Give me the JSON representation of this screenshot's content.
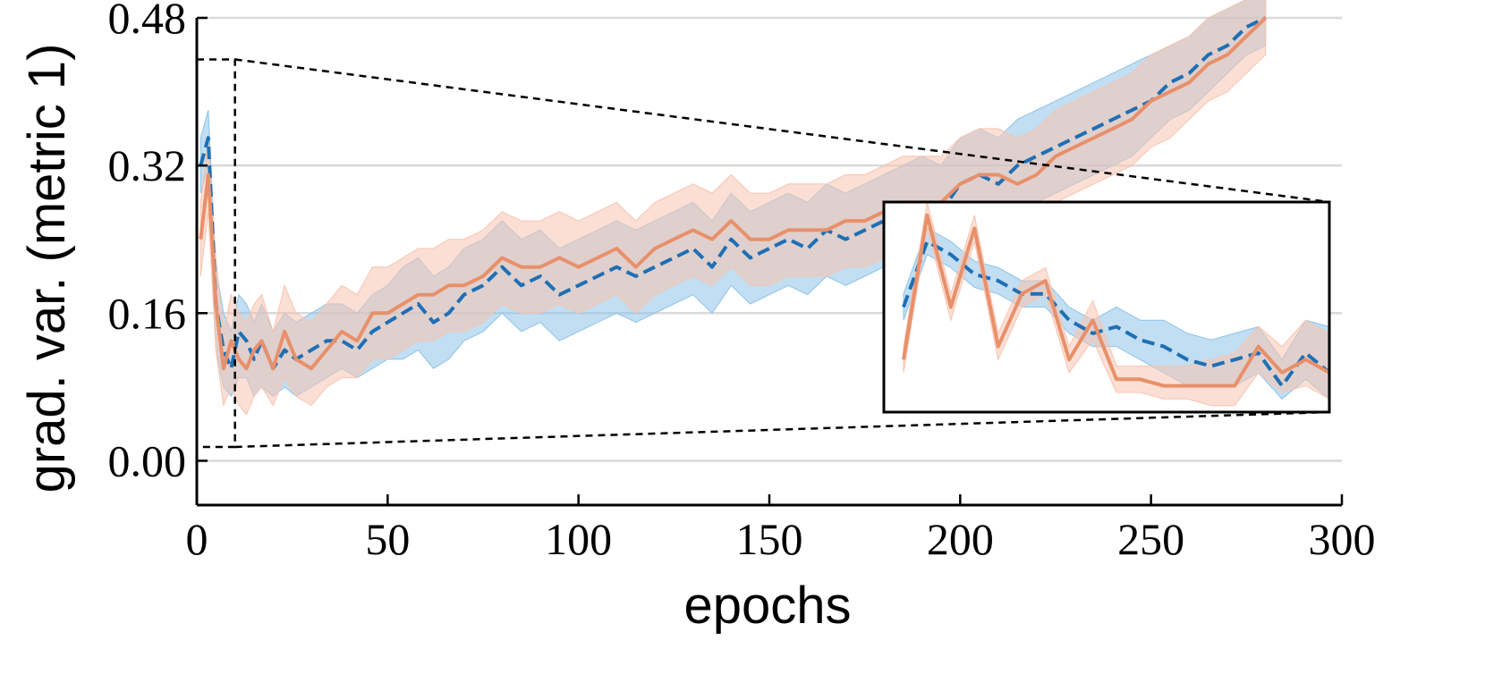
{
  "colors": {
    "blue_line": "#1f6fb4",
    "blue_band": "#8ec3e8",
    "orange_line": "#e8906a",
    "orange_band": "#f7c4b0",
    "grid": "#d9d9d9",
    "axis": "#000000"
  },
  "chart_data": {
    "type": "line",
    "title": "",
    "xlabel": "epochs",
    "ylabel": "grad. var. (metric 1)",
    "xlim": [
      0,
      300
    ],
    "ylim": [
      -0.048,
      0.48
    ],
    "x_ticks": [
      0,
      50,
      100,
      150,
      200,
      250,
      300
    ],
    "x_tick_labels": [
      "0",
      "50",
      "100",
      "150",
      "200",
      "250",
      "300"
    ],
    "y_ticks": [
      0.0,
      0.16,
      0.32,
      0.48
    ],
    "y_tick_labels": [
      "0.00",
      "0.16",
      "0.32",
      "0.48"
    ],
    "grid": "horizontal",
    "legend": "none",
    "series": [
      {
        "style": "dashed",
        "color": "blue",
        "x": [
          1,
          3,
          5,
          7,
          9,
          11,
          13,
          15,
          17,
          20,
          23,
          26,
          30,
          34,
          38,
          42,
          46,
          50,
          54,
          58,
          62,
          66,
          70,
          75,
          80,
          85,
          90,
          95,
          100,
          105,
          110,
          115,
          120,
          125,
          130,
          135,
          140,
          145,
          150,
          155,
          160,
          165,
          170,
          175,
          180,
          185,
          190,
          195,
          200,
          205,
          210,
          215,
          220,
          225,
          230,
          235,
          240,
          245,
          250,
          255,
          260,
          265,
          270,
          275,
          280
        ],
        "y": [
          0.32,
          0.35,
          0.17,
          0.12,
          0.1,
          0.14,
          0.13,
          0.11,
          0.13,
          0.1,
          0.12,
          0.11,
          0.12,
          0.13,
          0.13,
          0.12,
          0.14,
          0.15,
          0.16,
          0.17,
          0.15,
          0.16,
          0.18,
          0.19,
          0.21,
          0.19,
          0.2,
          0.18,
          0.19,
          0.2,
          0.21,
          0.2,
          0.21,
          0.22,
          0.23,
          0.21,
          0.24,
          0.22,
          0.23,
          0.24,
          0.23,
          0.25,
          0.24,
          0.25,
          0.26,
          0.27,
          0.28,
          0.27,
          0.3,
          0.31,
          0.3,
          0.32,
          0.33,
          0.34,
          0.35,
          0.36,
          0.37,
          0.38,
          0.39,
          0.41,
          0.42,
          0.44,
          0.45,
          0.47,
          0.48
        ],
        "lower": [
          0.29,
          0.32,
          0.12,
          0.08,
          0.07,
          0.09,
          0.09,
          0.07,
          0.08,
          0.07,
          0.08,
          0.07,
          0.08,
          0.09,
          0.1,
          0.09,
          0.1,
          0.11,
          0.11,
          0.12,
          0.1,
          0.11,
          0.13,
          0.14,
          0.16,
          0.14,
          0.15,
          0.13,
          0.14,
          0.15,
          0.16,
          0.15,
          0.16,
          0.17,
          0.18,
          0.16,
          0.19,
          0.17,
          0.18,
          0.19,
          0.18,
          0.2,
          0.19,
          0.2,
          0.21,
          0.22,
          0.23,
          0.22,
          0.25,
          0.26,
          0.25,
          0.27,
          0.28,
          0.29,
          0.3,
          0.31,
          0.32,
          0.33,
          0.35,
          0.37,
          0.38,
          0.4,
          0.42,
          0.44,
          0.45
        ],
        "upper": [
          0.35,
          0.38,
          0.21,
          0.16,
          0.14,
          0.18,
          0.17,
          0.15,
          0.17,
          0.14,
          0.16,
          0.15,
          0.16,
          0.17,
          0.17,
          0.16,
          0.18,
          0.19,
          0.21,
          0.22,
          0.2,
          0.21,
          0.23,
          0.24,
          0.26,
          0.24,
          0.25,
          0.23,
          0.24,
          0.25,
          0.26,
          0.25,
          0.26,
          0.27,
          0.28,
          0.26,
          0.29,
          0.27,
          0.28,
          0.29,
          0.28,
          0.3,
          0.29,
          0.3,
          0.31,
          0.32,
          0.33,
          0.32,
          0.35,
          0.36,
          0.35,
          0.37,
          0.38,
          0.39,
          0.4,
          0.41,
          0.42,
          0.43,
          0.44,
          0.45,
          0.46,
          0.48,
          0.49,
          0.5,
          0.5
        ]
      },
      {
        "style": "solid",
        "color": "orange",
        "x": [
          1,
          3,
          5,
          7,
          9,
          11,
          13,
          15,
          17,
          20,
          23,
          26,
          30,
          34,
          38,
          42,
          46,
          50,
          54,
          58,
          62,
          66,
          70,
          75,
          80,
          85,
          90,
          95,
          100,
          105,
          110,
          115,
          120,
          125,
          130,
          135,
          140,
          145,
          150,
          155,
          160,
          165,
          170,
          175,
          180,
          185,
          190,
          195,
          200,
          205,
          210,
          215,
          220,
          225,
          230,
          235,
          240,
          245,
          250,
          255,
          260,
          265,
          270,
          275,
          280
        ],
        "y": [
          0.24,
          0.31,
          0.17,
          0.1,
          0.13,
          0.11,
          0.1,
          0.12,
          0.13,
          0.1,
          0.14,
          0.11,
          0.1,
          0.12,
          0.14,
          0.13,
          0.16,
          0.16,
          0.17,
          0.18,
          0.18,
          0.19,
          0.19,
          0.2,
          0.22,
          0.21,
          0.21,
          0.22,
          0.21,
          0.22,
          0.23,
          0.21,
          0.23,
          0.24,
          0.25,
          0.24,
          0.26,
          0.24,
          0.24,
          0.25,
          0.25,
          0.25,
          0.26,
          0.26,
          0.27,
          0.28,
          0.28,
          0.28,
          0.3,
          0.31,
          0.31,
          0.3,
          0.31,
          0.33,
          0.34,
          0.35,
          0.36,
          0.37,
          0.39,
          0.4,
          0.41,
          0.43,
          0.44,
          0.46,
          0.48
        ],
        "lower": [
          0.2,
          0.27,
          0.12,
          0.06,
          0.08,
          0.06,
          0.05,
          0.07,
          0.08,
          0.06,
          0.09,
          0.07,
          0.06,
          0.08,
          0.09,
          0.09,
          0.11,
          0.11,
          0.12,
          0.13,
          0.13,
          0.14,
          0.14,
          0.15,
          0.17,
          0.16,
          0.16,
          0.17,
          0.16,
          0.17,
          0.18,
          0.16,
          0.18,
          0.19,
          0.2,
          0.19,
          0.21,
          0.19,
          0.19,
          0.2,
          0.2,
          0.2,
          0.21,
          0.21,
          0.22,
          0.23,
          0.23,
          0.23,
          0.25,
          0.26,
          0.26,
          0.25,
          0.26,
          0.28,
          0.29,
          0.3,
          0.31,
          0.32,
          0.34,
          0.35,
          0.37,
          0.39,
          0.4,
          0.42,
          0.44
        ],
        "upper": [
          0.28,
          0.35,
          0.22,
          0.14,
          0.18,
          0.16,
          0.15,
          0.17,
          0.18,
          0.14,
          0.19,
          0.16,
          0.15,
          0.17,
          0.19,
          0.18,
          0.21,
          0.21,
          0.22,
          0.23,
          0.23,
          0.24,
          0.24,
          0.25,
          0.27,
          0.26,
          0.26,
          0.27,
          0.26,
          0.27,
          0.28,
          0.26,
          0.28,
          0.29,
          0.3,
          0.29,
          0.31,
          0.29,
          0.29,
          0.3,
          0.3,
          0.3,
          0.31,
          0.31,
          0.32,
          0.33,
          0.33,
          0.33,
          0.35,
          0.36,
          0.36,
          0.35,
          0.36,
          0.38,
          0.39,
          0.4,
          0.41,
          0.42,
          0.44,
          0.45,
          0.46,
          0.48,
          0.49,
          0.5,
          0.5
        ]
      }
    ],
    "zoom_region": {
      "xlim": [
        0,
        10
      ],
      "ylim": [
        0.015,
        0.435
      ]
    },
    "inset": {
      "xlim": [
        1,
        10
      ],
      "ylim": [
        0.06,
        0.38
      ],
      "series": [
        {
          "style": "dashed",
          "color": "blue",
          "x": [
            1,
            1.5,
            2,
            2.5,
            3,
            3.5,
            4,
            4.5,
            5,
            5.5,
            6,
            6.5,
            7,
            7.5,
            8,
            8.5,
            9,
            9.5,
            10
          ],
          "y": [
            0.22,
            0.32,
            0.3,
            0.27,
            0.26,
            0.24,
            0.24,
            0.2,
            0.18,
            0.19,
            0.17,
            0.16,
            0.14,
            0.13,
            0.14,
            0.15,
            0.1,
            0.15,
            0.12
          ],
          "lower": [
            0.2,
            0.3,
            0.28,
            0.25,
            0.24,
            0.22,
            0.22,
            0.18,
            0.16,
            0.16,
            0.14,
            0.12,
            0.1,
            0.1,
            0.1,
            0.12,
            0.08,
            0.11,
            0.08
          ],
          "upper": [
            0.24,
            0.34,
            0.32,
            0.29,
            0.28,
            0.26,
            0.26,
            0.22,
            0.2,
            0.22,
            0.2,
            0.2,
            0.18,
            0.17,
            0.18,
            0.19,
            0.14,
            0.2,
            0.19
          ]
        },
        {
          "style": "solid",
          "color": "orange",
          "x": [
            1,
            1.5,
            2,
            2.5,
            3,
            3.5,
            4,
            4.5,
            5,
            5.5,
            6,
            6.5,
            7,
            7.5,
            8,
            8.5,
            9,
            9.5,
            10
          ],
          "y": [
            0.14,
            0.36,
            0.22,
            0.34,
            0.16,
            0.24,
            0.26,
            0.14,
            0.2,
            0.11,
            0.11,
            0.1,
            0.1,
            0.1,
            0.1,
            0.16,
            0.12,
            0.14,
            0.12
          ],
          "lower": [
            0.12,
            0.34,
            0.2,
            0.32,
            0.14,
            0.22,
            0.24,
            0.12,
            0.17,
            0.09,
            0.09,
            0.08,
            0.08,
            0.07,
            0.07,
            0.12,
            0.09,
            0.1,
            0.08
          ],
          "upper": [
            0.16,
            0.38,
            0.24,
            0.36,
            0.18,
            0.26,
            0.28,
            0.16,
            0.23,
            0.13,
            0.13,
            0.13,
            0.13,
            0.14,
            0.15,
            0.19,
            0.16,
            0.2,
            0.18
          ]
        }
      ]
    }
  }
}
